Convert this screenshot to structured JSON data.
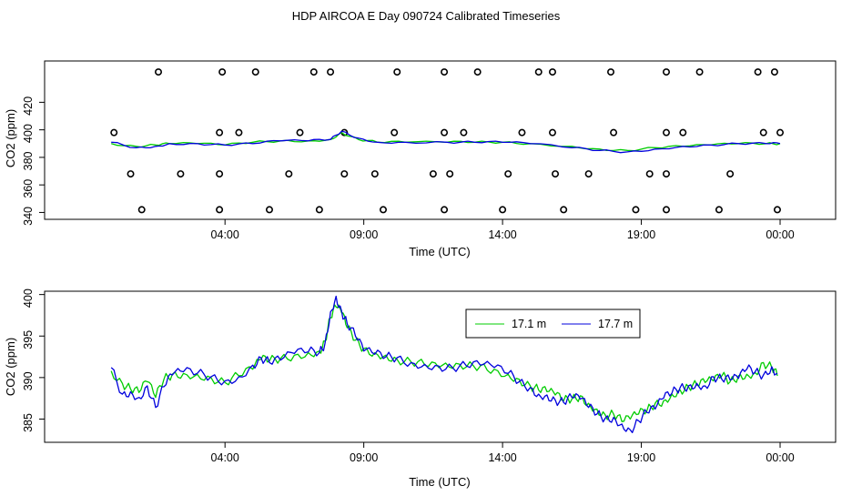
{
  "title": "HDP AIRCOA E  Day 090724  Calibrated Timeseries",
  "chart_data": [
    {
      "id": "top",
      "type": "line+scatter",
      "xlabel": "Time (UTC)",
      "ylabel": "CO2 (ppm)",
      "xlim": [
        -2.5,
        26
      ],
      "ylim": [
        335,
        450
      ],
      "x_ticks": [
        4,
        9,
        14,
        19,
        24
      ],
      "x_tick_labels": [
        "04:00",
        "09:00",
        "14:00",
        "19:00",
        "00:00"
      ],
      "y_ticks": [
        340,
        360,
        380,
        400,
        420
      ],
      "y_tick_labels": [
        "340",
        "360",
        "380",
        "400",
        "420"
      ],
      "calibration_points": {
        "x": [
          1.0,
          3.8,
          5.6,
          7.4,
          9.7,
          11.9,
          14.0,
          16.2,
          18.8,
          19.9,
          21.8,
          23.9,
          0.6,
          2.4,
          3.8,
          6.3,
          8.3,
          9.4,
          11.5,
          12.1,
          14.2,
          15.9,
          17.1,
          19.3,
          19.9,
          22.2,
          0.0,
          3.8,
          4.5,
          6.7,
          8.3,
          10.1,
          11.9,
          12.6,
          14.7,
          15.8,
          18.0,
          19.9,
          20.5,
          23.4,
          24.0,
          1.6,
          3.9,
          5.1,
          7.2,
          7.8,
          10.2,
          11.9,
          13.1,
          15.3,
          15.8,
          17.9,
          19.9,
          21.1,
          23.2,
          23.8
        ],
        "y": [
          342,
          342,
          342,
          342,
          342,
          342,
          342,
          342,
          342,
          342,
          342,
          342,
          368,
          368,
          368,
          368,
          368,
          368,
          368,
          368,
          368,
          368,
          368,
          368,
          368,
          368,
          398,
          398,
          398,
          398,
          398,
          398,
          398,
          398,
          398,
          398,
          398,
          398,
          398,
          398,
          398,
          442,
          442,
          442,
          442,
          442,
          442,
          442,
          442,
          442,
          442,
          442,
          442,
          442,
          442,
          442
        ]
      },
      "series": [
        {
          "name": "17.1 m",
          "color": "#00cc00",
          "x": [
            -0.1,
            0.8,
            1.5,
            2.0,
            3.0,
            4.0,
            5.0,
            6.0,
            7.0,
            7.8,
            8.2,
            8.8,
            9.5,
            10.5,
            12.0,
            13.0,
            14.0,
            15.0,
            16.5,
            17.5,
            18.5,
            19.5,
            20.5,
            21.5,
            22.5,
            23.5,
            24.0
          ],
          "y": [
            390,
            388,
            389,
            390,
            390,
            389,
            391,
            392,
            392,
            393,
            398,
            393,
            391,
            391,
            391,
            391,
            391,
            390,
            388,
            386,
            385,
            387,
            388,
            389,
            390,
            390,
            390
          ]
        },
        {
          "name": "17.7 m",
          "color": "#0000dd",
          "x": [
            -0.1,
            0.8,
            1.5,
            2.0,
            3.0,
            4.0,
            5.0,
            6.0,
            7.0,
            7.8,
            8.2,
            8.8,
            9.5,
            10.5,
            12.0,
            13.0,
            14.0,
            15.0,
            16.5,
            17.5,
            18.5,
            19.5,
            20.5,
            21.5,
            22.5,
            23.5,
            24.0
          ],
          "y": [
            391,
            387,
            388,
            390,
            390,
            389,
            390,
            392,
            392,
            393,
            399,
            394,
            391,
            391,
            391,
            391,
            391,
            390,
            387,
            385,
            384,
            386,
            388,
            389,
            390,
            390,
            390
          ]
        }
      ]
    },
    {
      "id": "bottom",
      "type": "line",
      "xlabel": "Time (UTC)",
      "ylabel": "CO2 (ppm)",
      "xlim": [
        -2.5,
        26
      ],
      "ylim": [
        382.2,
        400.4
      ],
      "x_ticks": [
        4,
        9,
        14,
        19,
        24
      ],
      "x_tick_labels": [
        "04:00",
        "09:00",
        "14:00",
        "19:00",
        "00:00"
      ],
      "y_ticks": [
        385,
        390,
        395,
        400
      ],
      "y_tick_labels": [
        "385",
        "390",
        "395",
        "400"
      ],
      "legend": {
        "position": "top-right",
        "entries": [
          "17.1 m",
          "17.7 m"
        ]
      },
      "series": [
        {
          "name": "17.1 m",
          "color": "#00cc00",
          "x": [
            -0.1,
            0.3,
            0.6,
            0.9,
            1.2,
            1.5,
            1.8,
            2.1,
            2.5,
            3.0,
            3.5,
            4.0,
            4.5,
            5.0,
            5.3,
            5.6,
            6.0,
            6.5,
            7.0,
            7.4,
            7.6,
            7.8,
            8.0,
            8.2,
            8.4,
            8.7,
            9.0,
            9.4,
            9.8,
            10.2,
            10.7,
            11.2,
            11.7,
            12.2,
            12.7,
            13.2,
            13.7,
            14.2,
            14.6,
            15.0,
            15.3,
            15.6,
            15.9,
            16.2,
            16.5,
            16.8,
            17.1,
            17.4,
            17.7,
            18.0,
            18.3,
            18.6,
            18.9,
            19.2,
            19.5,
            19.8,
            20.1,
            20.4,
            20.7,
            21.0,
            21.3,
            21.6,
            21.9,
            22.2,
            22.5,
            22.8,
            23.1,
            23.4,
            23.7,
            23.9
          ],
          "y": [
            390.8,
            389.3,
            388.6,
            388.2,
            389.5,
            387.6,
            389.8,
            390.4,
            390.5,
            390.4,
            390.0,
            389.4,
            390.2,
            391.0,
            392.2,
            392.0,
            392.3,
            392.7,
            393.0,
            393.2,
            394.4,
            397.2,
            398.5,
            397.8,
            396.0,
            394.5,
            393.5,
            393.0,
            392.7,
            392.2,
            391.9,
            391.5,
            391.2,
            391.1,
            391.3,
            391.4,
            391.0,
            390.4,
            389.8,
            389.0,
            388.5,
            388.3,
            387.9,
            387.2,
            387.4,
            387.8,
            386.9,
            386.2,
            385.5,
            385.6,
            384.7,
            385.0,
            385.6,
            386.0,
            386.9,
            387.2,
            388.0,
            388.5,
            388.9,
            389.1,
            389.4,
            389.6,
            390.2,
            389.5,
            390.2,
            390.4,
            390.6,
            391.8,
            391.2,
            390.2
          ]
        },
        {
          "name": "17.7 m",
          "color": "#0000dd",
          "x": [
            -0.1,
            0.3,
            0.6,
            0.9,
            1.2,
            1.5,
            1.8,
            2.1,
            2.5,
            3.0,
            3.5,
            4.0,
            4.5,
            5.0,
            5.3,
            5.6,
            6.0,
            6.5,
            7.0,
            7.4,
            7.6,
            7.8,
            8.0,
            8.2,
            8.4,
            8.7,
            9.0,
            9.4,
            9.8,
            10.2,
            10.7,
            11.2,
            11.7,
            12.2,
            12.7,
            13.2,
            13.7,
            14.2,
            14.6,
            15.0,
            15.3,
            15.6,
            15.9,
            16.2,
            16.5,
            16.8,
            17.1,
            17.4,
            17.7,
            18.0,
            18.3,
            18.6,
            18.9,
            19.2,
            19.5,
            19.8,
            20.1,
            20.4,
            20.7,
            21.0,
            21.3,
            21.6,
            21.9,
            22.2,
            22.5,
            22.8,
            23.1,
            23.4,
            23.7,
            23.9
          ],
          "y": [
            391.2,
            388.0,
            388.3,
            387.6,
            389.0,
            386.4,
            388.9,
            390.3,
            390.7,
            390.5,
            390.1,
            389.6,
            390.1,
            391.5,
            392.4,
            391.8,
            392.1,
            392.9,
            393.1,
            393.0,
            394.1,
            397.9,
            399.8,
            398.0,
            396.5,
            395.0,
            393.2,
            392.8,
            392.5,
            392.4,
            391.8,
            391.6,
            391.4,
            391.2,
            391.4,
            391.5,
            391.2,
            390.5,
            389.5,
            388.8,
            388.0,
            387.9,
            387.3,
            387.0,
            387.6,
            387.4,
            386.4,
            385.6,
            385.1,
            385.2,
            384.4,
            383.7,
            384.8,
            385.8,
            386.2,
            387.5,
            388.1,
            388.8,
            389.0,
            389.3,
            389.0,
            390.1,
            389.8,
            389.7,
            389.9,
            391.0,
            390.7,
            390.3,
            391.3,
            390.5
          ]
        }
      ]
    }
  ]
}
